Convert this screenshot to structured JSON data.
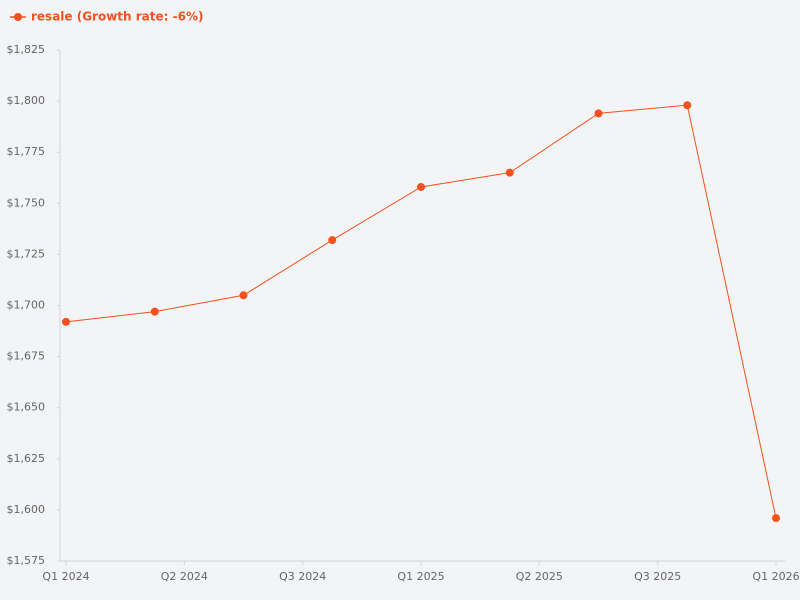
{
  "chart_data": {
    "type": "line",
    "x": [
      0,
      1,
      2,
      3,
      4,
      5,
      6,
      7,
      8
    ],
    "series": [
      {
        "name": "resale (Growth rate: -6%)",
        "color": "#f4511e",
        "values": [
          1692,
          1697,
          1705,
          1732,
          1758,
          1765,
          1794,
          1798,
          1596
        ]
      }
    ],
    "xlim": [
      0,
      8
    ],
    "xticks": [
      {
        "value": 0,
        "label": "Q1 2024"
      },
      {
        "value": 1.333,
        "label": "Q2 2024"
      },
      {
        "value": 2.667,
        "label": "Q3 2024"
      },
      {
        "value": 4,
        "label": "Q1 2025"
      },
      {
        "value": 5.333,
        "label": "Q2 2025"
      },
      {
        "value": 6.667,
        "label": "Q3 2025"
      },
      {
        "value": 8,
        "label": "Q1 2026"
      }
    ],
    "ylim": [
      1575,
      1825
    ],
    "yticks": [
      {
        "value": 1575,
        "label": "$1,575"
      },
      {
        "value": 1600,
        "label": "$1,600"
      },
      {
        "value": 1625,
        "label": "$1,625"
      },
      {
        "value": 1650,
        "label": "$1,650"
      },
      {
        "value": 1675,
        "label": "$1,675"
      },
      {
        "value": 1700,
        "label": "$1,700"
      },
      {
        "value": 1725,
        "label": "$1,725"
      },
      {
        "value": 1750,
        "label": "$1,750"
      },
      {
        "value": 1775,
        "label": "$1,775"
      },
      {
        "value": 1800,
        "label": "$1,800"
      },
      {
        "value": 1825,
        "label": "$1,825"
      }
    ],
    "grid": false,
    "legend": "top-left"
  }
}
